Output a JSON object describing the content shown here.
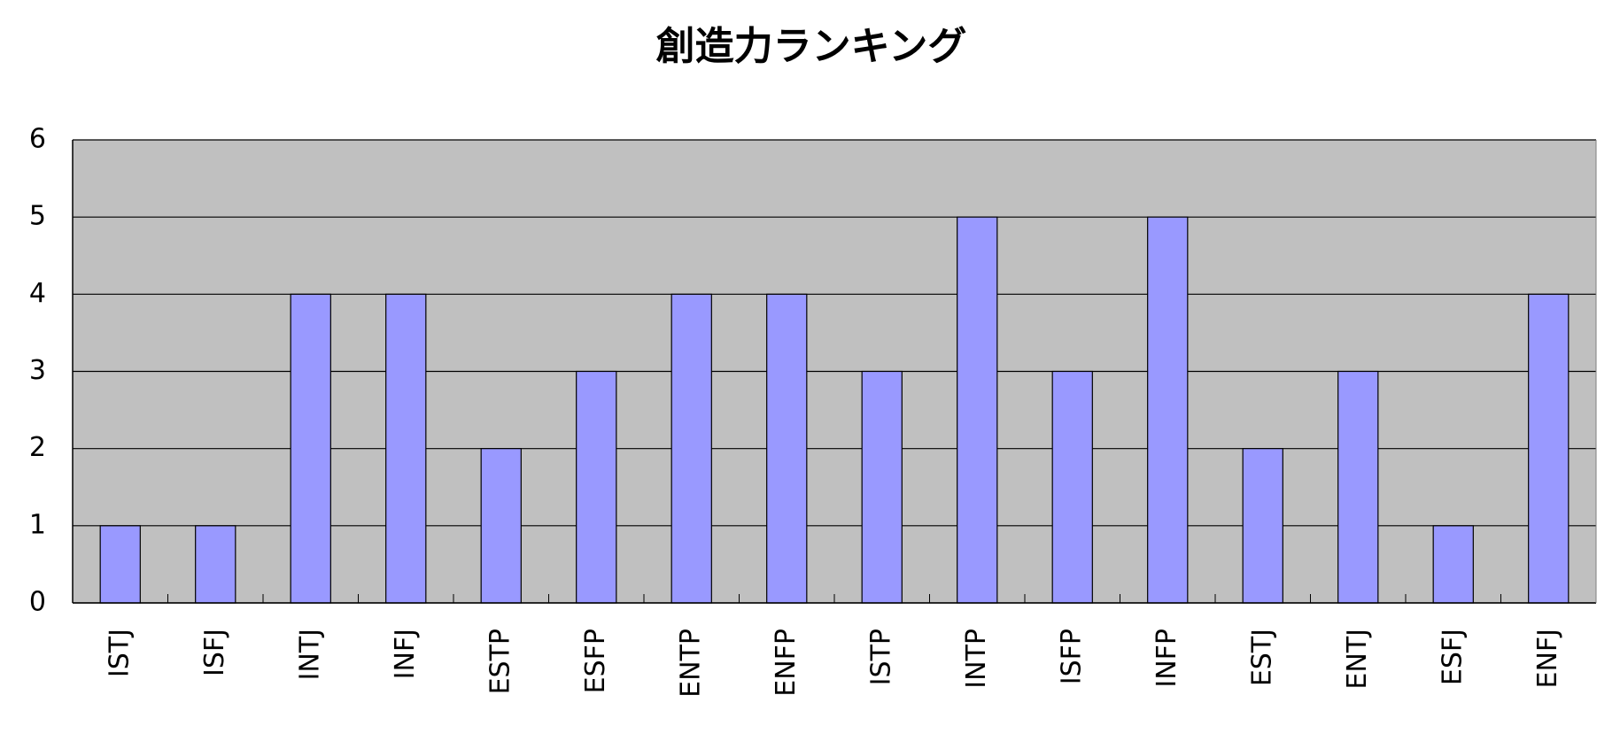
{
  "chart_data": {
    "type": "bar",
    "title": "創造力ランキング",
    "categories": [
      "ISTJ",
      "ISFJ",
      "INTJ",
      "INFJ",
      "ESTP",
      "ESFP",
      "ENTP",
      "ENFP",
      "ISTP",
      "INTP",
      "ISFP",
      "INFP",
      "ESTJ",
      "ENTJ",
      "ESFJ",
      "ENFJ"
    ],
    "values": [
      1,
      1,
      4,
      4,
      2,
      3,
      4,
      4,
      3,
      5,
      3,
      5,
      2,
      3,
      1,
      4
    ],
    "color": "#9999ff",
    "ylim": [
      0,
      6
    ],
    "yticks": [
      0,
      1,
      2,
      3,
      4,
      5,
      6
    ],
    "grid": true
  }
}
